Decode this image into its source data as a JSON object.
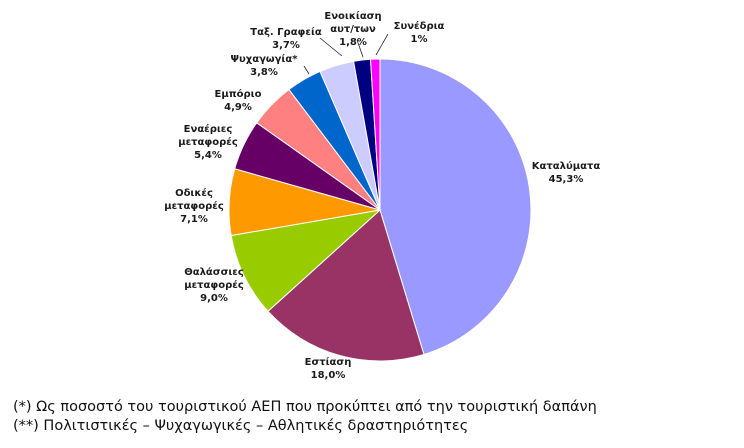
{
  "chart_data": {
    "type": "pie",
    "slices": [
      {
        "label": [
          "Καταλύματα"
        ],
        "value": 45.3,
        "value_label": "45,3%",
        "color": "#9999ff"
      },
      {
        "label": [
          "Εστίαση"
        ],
        "value": 18.0,
        "value_label": "18,0%",
        "color": "#993366"
      },
      {
        "label": [
          "Θαλάσσιες",
          "μεταφορές"
        ],
        "value": 9.0,
        "value_label": "9,0%",
        "color": "#99cc00"
      },
      {
        "label": [
          "Οδικές",
          "μεταφορές"
        ],
        "value": 7.1,
        "value_label": "7,1%",
        "color": "#ff9900"
      },
      {
        "label": [
          "Εναέριες",
          "μεταφορές"
        ],
        "value": 5.4,
        "value_label": "5,4%",
        "color": "#660066"
      },
      {
        "label": [
          "Εμπόριο"
        ],
        "value": 4.9,
        "value_label": "4,9%",
        "color": "#ff8080"
      },
      {
        "label": [
          "Ψυχαγωγία*"
        ],
        "value": 3.8,
        "value_label": "3,8%",
        "color": "#0066cc"
      },
      {
        "label": [
          "Ταξ. Γραφεία"
        ],
        "value": 3.7,
        "value_label": "3,7%",
        "color": "#ccccff"
      },
      {
        "label": [
          "Ενοικίαση",
          "αυτ/των"
        ],
        "value": 1.8,
        "value_label": "1,8%",
        "color": "#000080"
      },
      {
        "label": [
          "Συνέδρια"
        ],
        "value": 1.0,
        "value_label": "1%",
        "color": "#ff00ff"
      }
    ]
  },
  "footnotes": [
    "(*) Ως ποσοστό του τουριστικού ΑΕΠ που προκύπτει από την τουριστική δαπάνη",
    "(**) Πολιτιστικές – Ψυχαγωγικές – Αθλητικές δραστηριότητες"
  ]
}
